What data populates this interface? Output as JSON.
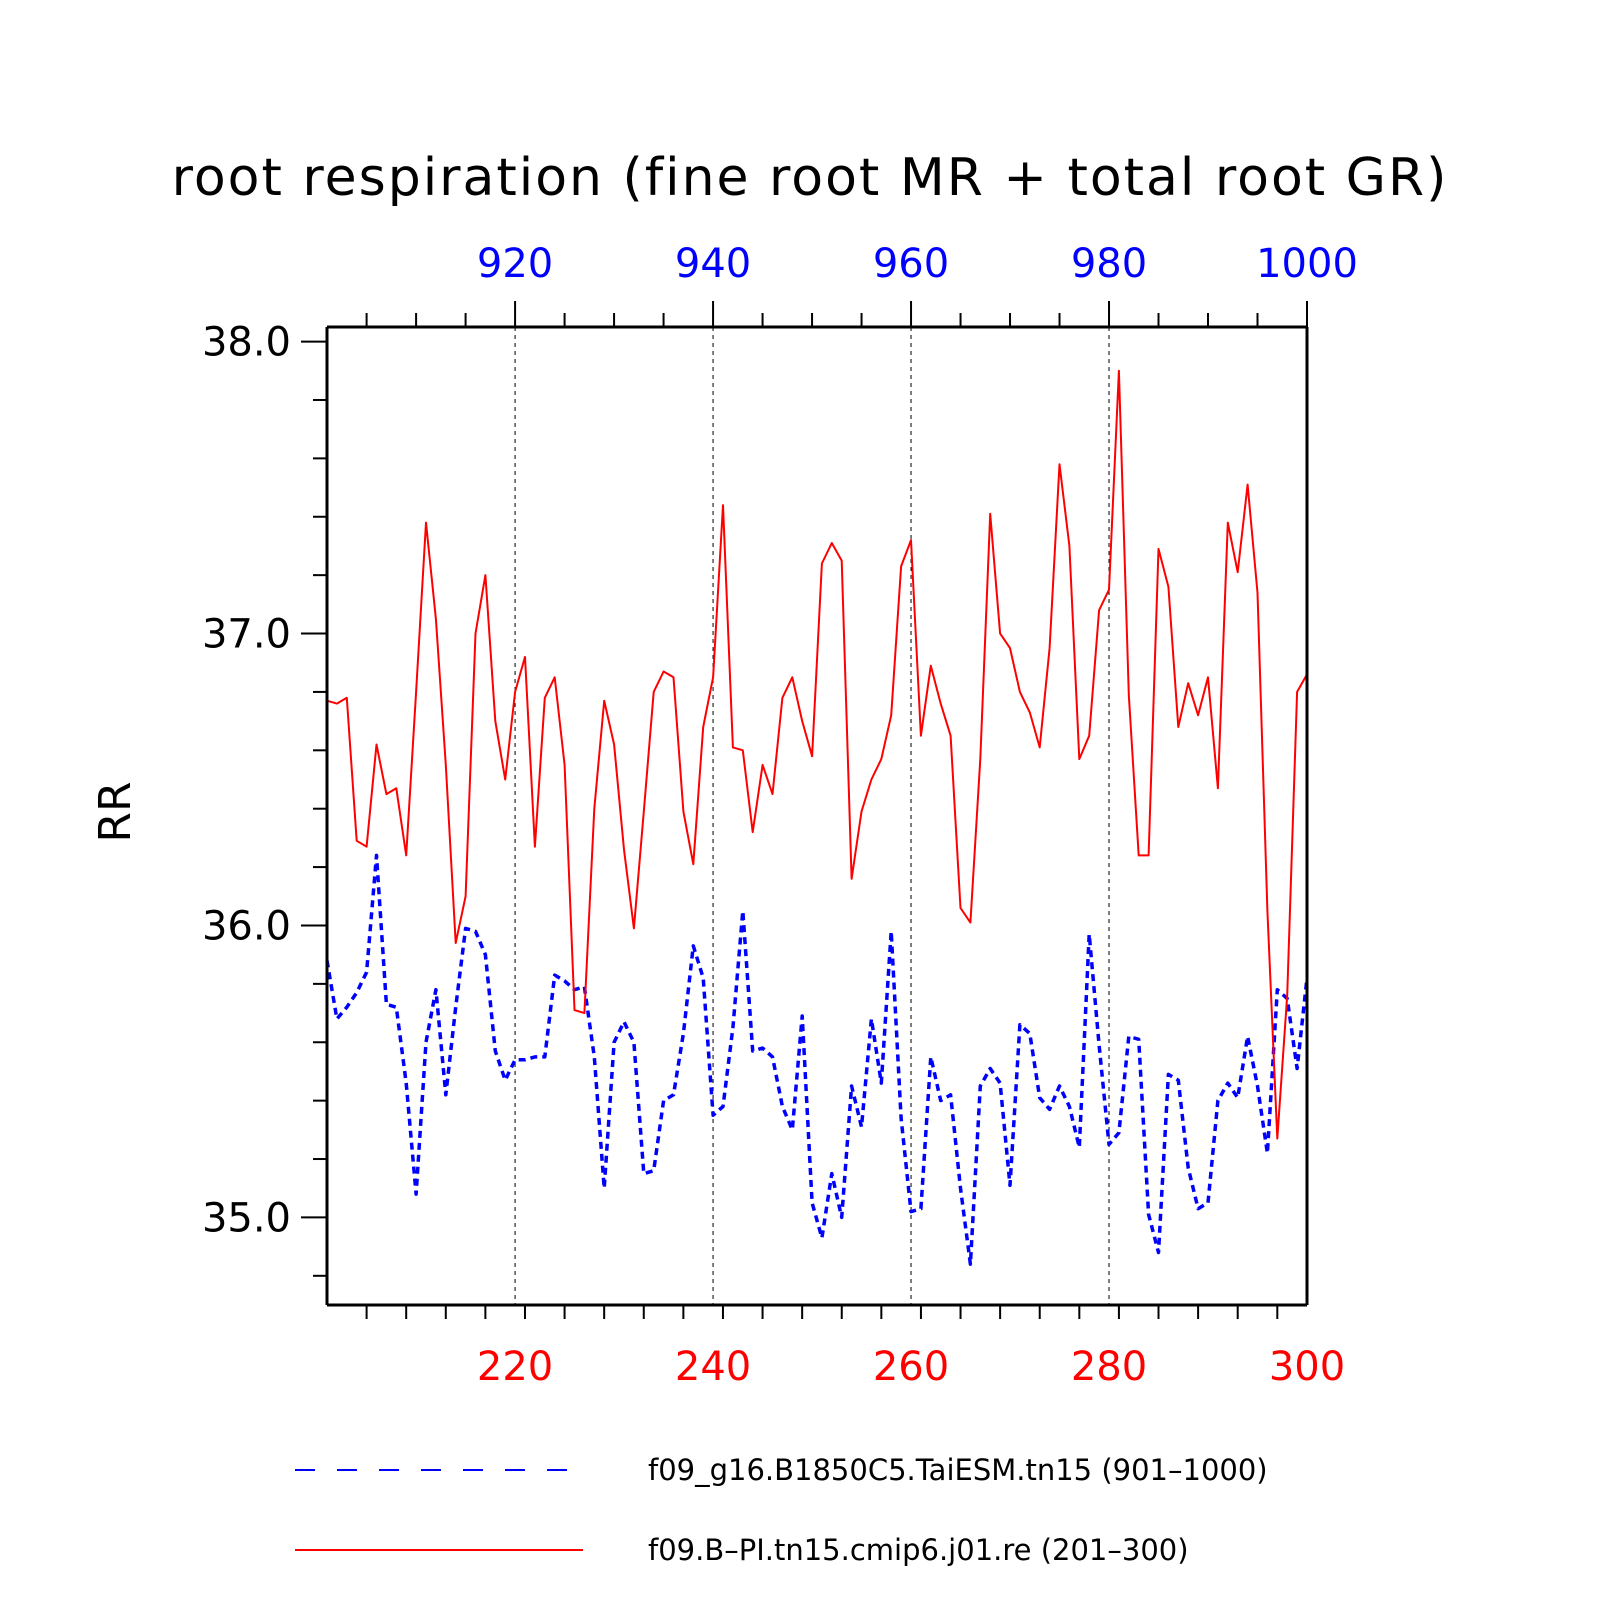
{
  "chart_data": {
    "type": "line",
    "title": "root respiration (fine root MR + total root GR)",
    "ylabel": "RR",
    "ylim": [
      34.7,
      38.05
    ],
    "yticks": [
      35.0,
      36.0,
      37.0,
      38.0
    ],
    "ytick_labels": [
      "35.0",
      "36.0",
      "37.0",
      "38.0"
    ],
    "ymin_step": 0.2,
    "grid": "vertical dashed lines at major x ticks",
    "bottom_axis": {
      "color": "#ff0000",
      "range": [
        201,
        300
      ],
      "ticks": [
        220,
        240,
        260,
        280,
        300
      ],
      "tick_labels": [
        "220",
        "240",
        "260",
        "280",
        "300"
      ],
      "minor_step": 4
    },
    "top_axis": {
      "color": "#0000ff",
      "range": [
        901,
        1000
      ],
      "ticks": [
        920,
        940,
        960,
        980,
        1000
      ],
      "tick_labels": [
        "920",
        "940",
        "960",
        "980",
        "1000"
      ],
      "minor_step": 5
    },
    "legend_position": "bottom",
    "series": [
      {
        "name": "f09_g16.B1850C5.TaiESM.tn15 (901–1000)",
        "axis": "top",
        "color": "#0000ff",
        "style": "dashed",
        "x_start": 901,
        "values": [
          35.88,
          35.68,
          35.72,
          35.77,
          35.84,
          36.24,
          35.73,
          35.72,
          35.46,
          35.08,
          35.6,
          35.78,
          35.42,
          35.72,
          35.99,
          35.98,
          35.9,
          35.57,
          35.47,
          35.54,
          35.54,
          35.55,
          35.55,
          35.83,
          35.81,
          35.78,
          35.79,
          35.55,
          35.1,
          35.6,
          35.67,
          35.6,
          35.15,
          35.16,
          35.4,
          35.42,
          35.63,
          35.93,
          35.82,
          35.35,
          35.38,
          35.65,
          36.05,
          35.57,
          35.58,
          35.55,
          35.38,
          35.3,
          35.69,
          35.05,
          34.93,
          35.15,
          35.0,
          35.45,
          35.31,
          35.68,
          35.46,
          35.98,
          35.34,
          35.02,
          35.03,
          35.55,
          35.4,
          35.42,
          35.1,
          34.84,
          35.45,
          35.51,
          35.46,
          35.11,
          35.66,
          35.63,
          35.41,
          35.37,
          35.45,
          35.38,
          35.24,
          35.97,
          35.59,
          35.25,
          35.29,
          35.62,
          35.61,
          35.01,
          34.88,
          35.49,
          35.47,
          35.17,
          35.03,
          35.05,
          35.4,
          35.46,
          35.41,
          35.62,
          35.45,
          35.22,
          35.78,
          35.75,
          35.51,
          35.82
        ]
      },
      {
        "name": "f09.B–PI.tn15.cmip6.j01.re (201–300)",
        "axis": "bottom",
        "color": "#ff0000",
        "style": "solid",
        "x_start": 201,
        "values": [
          36.77,
          36.76,
          36.78,
          36.29,
          36.27,
          36.62,
          36.45,
          36.47,
          36.24,
          36.8,
          37.38,
          37.05,
          36.55,
          35.94,
          36.1,
          37.0,
          37.2,
          36.7,
          36.5,
          36.8,
          36.92,
          36.27,
          36.78,
          36.85,
          36.55,
          35.71,
          35.7,
          36.4,
          36.77,
          36.62,
          36.26,
          35.99,
          36.39,
          36.8,
          36.87,
          36.85,
          36.39,
          36.21,
          36.68,
          36.85,
          37.44,
          36.61,
          36.6,
          36.32,
          36.55,
          36.45,
          36.78,
          36.85,
          36.7,
          36.58,
          37.24,
          37.31,
          37.25,
          36.16,
          36.39,
          36.5,
          36.57,
          36.72,
          37.23,
          37.32,
          36.65,
          36.89,
          36.76,
          36.65,
          36.06,
          36.01,
          36.57,
          37.41,
          37.0,
          36.95,
          36.8,
          36.73,
          36.61,
          36.95,
          37.58,
          37.3,
          36.57,
          36.65,
          37.08,
          37.15,
          37.9,
          36.79,
          36.24,
          36.24,
          37.29,
          37.16,
          36.68,
          36.83,
          36.72,
          36.85,
          36.47,
          37.38,
          37.21,
          37.51,
          37.14,
          36.05,
          35.27,
          35.76,
          36.8,
          36.86
        ]
      }
    ]
  }
}
